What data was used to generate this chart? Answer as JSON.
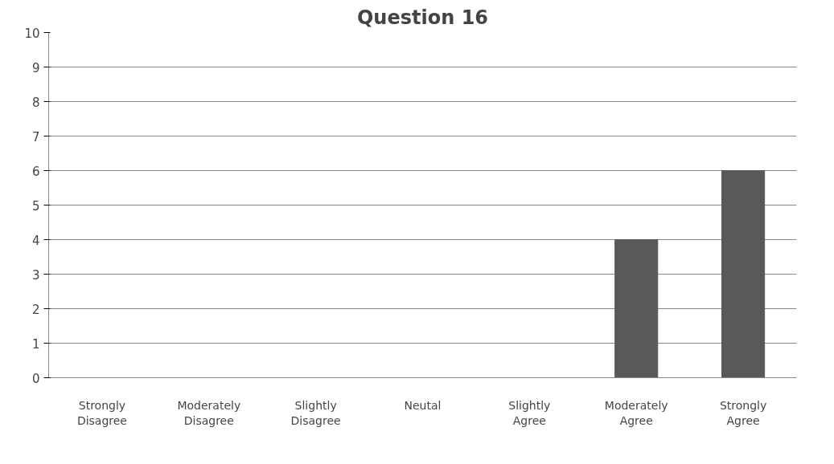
{
  "chart_data": {
    "type": "bar",
    "title": "Question 16",
    "categories": [
      "Strongly Disagree",
      "Moderately Disagree",
      "Slightly Disagree",
      "Neutal",
      "Slightly Agree",
      "Moderately Agree",
      "Strongly Agree"
    ],
    "values": [
      0,
      0,
      0,
      0,
      0,
      4,
      6
    ],
    "color": "#595959",
    "ylim": [
      0,
      10
    ],
    "yticks": [
      0,
      1,
      2,
      3,
      4,
      5,
      6,
      7,
      8,
      9,
      10
    ],
    "grid": "y"
  }
}
